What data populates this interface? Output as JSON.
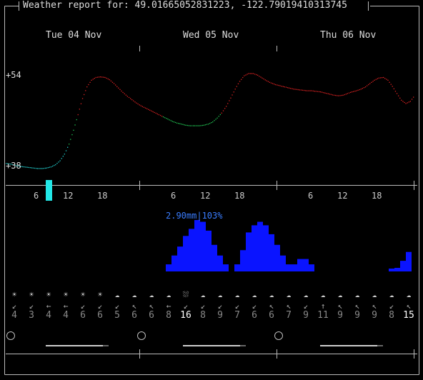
{
  "title": "Weather report for: 49.01665052831223, -122.79019410313745",
  "days": [
    "Tue 04 Nov",
    "Wed 05 Nov",
    "Thu 06 Nov"
  ],
  "temperature": {
    "max_label": "+54",
    "min_label": "+38"
  },
  "hour_ticks": [
    "6",
    "12",
    "18",
    "6",
    "12",
    "18",
    "6",
    "12",
    "18"
  ],
  "precip": {
    "max_label": "2.90mm|103%"
  },
  "wind": {
    "icons": [
      "☀",
      "☀",
      "☀",
      "☀",
      "☀",
      "☀",
      "☁",
      "☁",
      "☁",
      "☁",
      "⛆",
      "☁",
      "☁",
      "☁",
      "☁",
      "☁",
      "☁",
      "☁",
      "☁",
      "☁",
      "☁",
      "☁",
      "☁",
      "☁"
    ],
    "arrows": [
      "↙",
      "↙",
      "←",
      "←",
      "↙",
      "↙",
      "↙",
      "↖",
      "↖",
      "←",
      "↙",
      "↙",
      "↙",
      "↙",
      "↙",
      "↖",
      "↖",
      "↙",
      "↑",
      "↖",
      "↖",
      "↖",
      "↙",
      "↖"
    ],
    "speeds": [
      "4",
      "3",
      "4",
      "4",
      "6",
      "6",
      "5",
      "6",
      "6",
      "8",
      "16",
      "8",
      "9",
      "7",
      "6",
      "6",
      "7",
      "9",
      "11",
      "9",
      "9",
      "9",
      "8",
      "15"
    ],
    "highlight_index": 10
  },
  "colors": {
    "cold": "#22d3d3",
    "mild": "#22cc55",
    "warm": "#dd2222",
    "precip": "#0a14ff",
    "precip_label": "#3a7dff",
    "now_marker": "#22e8e8"
  },
  "chart_data": {
    "type": "line",
    "title": "",
    "series": [
      {
        "values": [
          38.5,
          38.4,
          38.2,
          38.0,
          37.9,
          37.8,
          37.7,
          37.6,
          37.6,
          37.7,
          37.9,
          38.3,
          39.0,
          40.2,
          42.0,
          44.5,
          47.3,
          50.2,
          52.3,
          53.5,
          54.0,
          54.1,
          54.0,
          53.6,
          52.9,
          52.1,
          51.3,
          50.6,
          50.0,
          49.4,
          48.9,
          48.5,
          48.1,
          47.7,
          47.3,
          46.9,
          46.5,
          46.1,
          45.8,
          45.6,
          45.4,
          45.3,
          45.3,
          45.3,
          45.4,
          45.6,
          46.0,
          46.7,
          47.6,
          48.8,
          50.3,
          51.9,
          53.3,
          54.3,
          54.7,
          54.7,
          54.4,
          53.9,
          53.4,
          53.0,
          52.7,
          52.5,
          52.3,
          52.1,
          51.9,
          51.8,
          51.7,
          51.6,
          51.6,
          51.5,
          51.4,
          51.2,
          51.0,
          50.8,
          50.7,
          50.8,
          51.1,
          51.4,
          51.6,
          51.9,
          52.3,
          52.9,
          53.5,
          53.9,
          54.0,
          53.5,
          52.4,
          51.1,
          49.9,
          49.3,
          49.7,
          50.8
        ]
      }
    ],
    "ylim": [
      37,
      55
    ],
    "precip_mm": [
      0.4,
      0.9,
      1.4,
      2.0,
      2.4,
      2.9,
      2.8,
      2.3,
      1.5,
      0.9,
      0.4,
      0.0,
      0.4,
      1.2,
      2.2,
      2.6,
      2.8,
      2.6,
      2.1,
      1.5,
      0.9,
      0.4,
      0.4,
      0.7,
      0.7,
      0.4,
      0.0,
      0.0,
      0.0,
      0.0,
      0.0,
      0.0,
      0.0,
      0.0,
      0.0,
      0.0,
      0.0,
      0.0,
      0.0,
      0.1,
      0.2,
      0.6,
      1.1
    ],
    "precip_start_hour": 28
  }
}
